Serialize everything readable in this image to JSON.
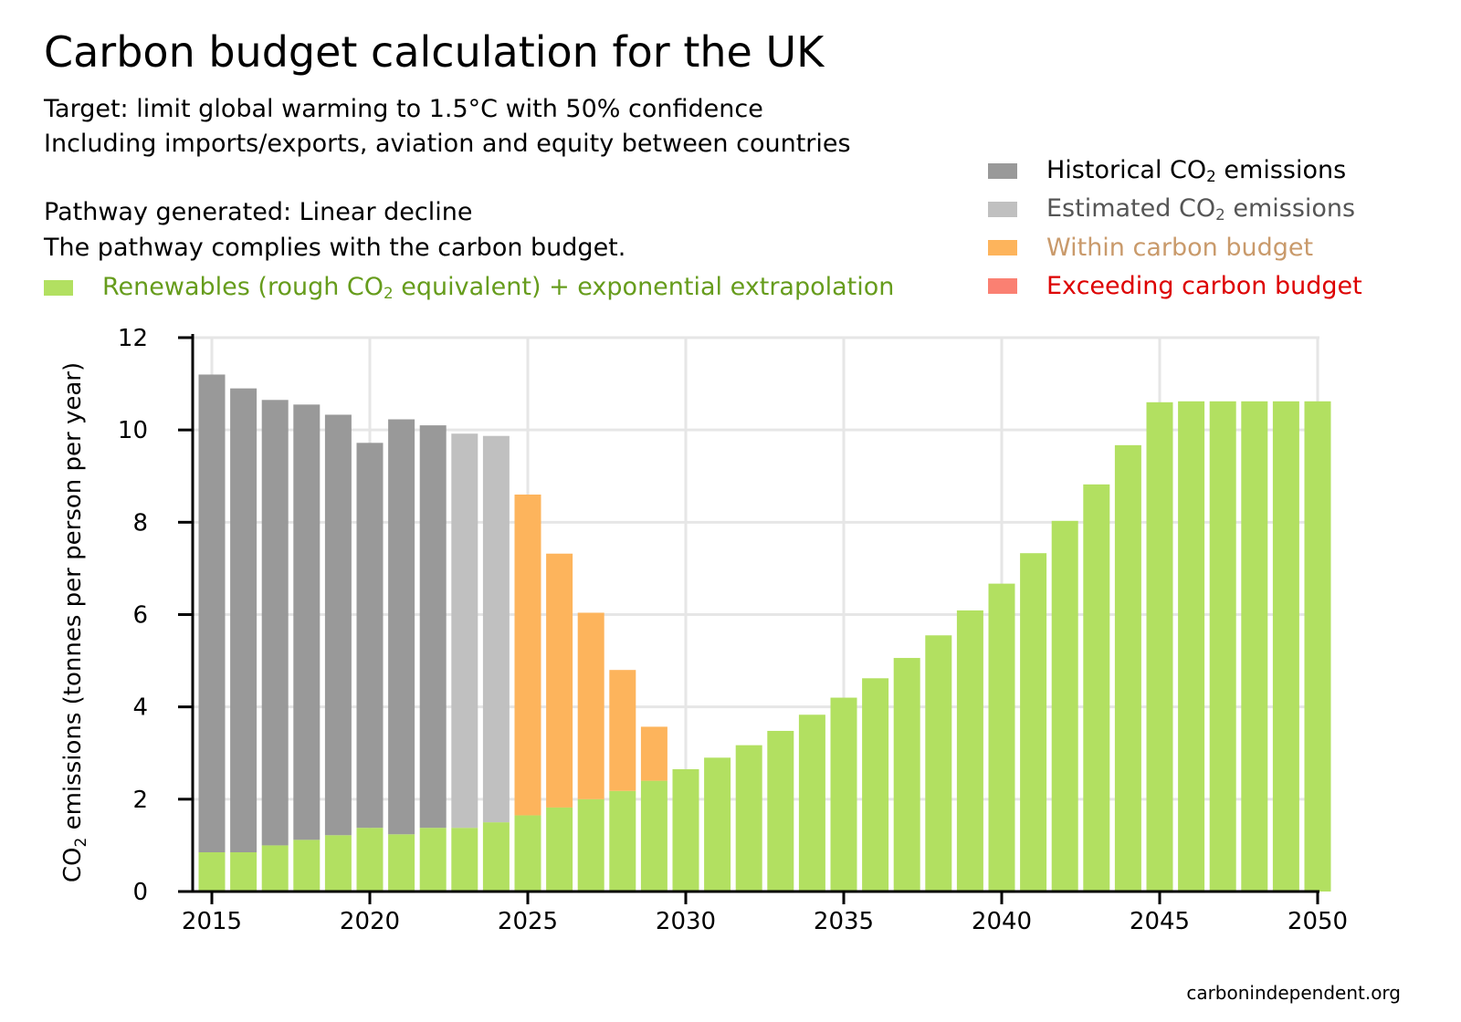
{
  "title": "Carbon budget calculation for the UK",
  "subtitle_lines": [
    "Target: limit global warming to 1.5°C with 50% confidence",
    "Including imports/exports, aviation and equity between countries"
  ],
  "pathway_lines": [
    "Pathway generated: Linear decline",
    "The pathway complies with the carbon budget."
  ],
  "legend": {
    "renewables": {
      "label_pre": "Renewables (rough CO",
      "label_sub": "2",
      "label_post": " equivalent) + exponential extrapolation",
      "color": "#b2e061",
      "text_color": "#669c1c"
    },
    "historical": {
      "label_pre": "Historical CO",
      "label_sub": "2",
      "label_post": " emissions",
      "color": "#999999",
      "text_color": "#000000"
    },
    "estimated": {
      "label_pre": "Estimated CO",
      "label_sub": "2",
      "label_post": " emissions",
      "color": "#c0c0c0",
      "text_color": "#555555"
    },
    "within": {
      "label": "Within carbon budget",
      "color": "#fdb45c",
      "text_color": "#c99a6b"
    },
    "exceeding": {
      "label": "Exceeding carbon budget",
      "color": "#fa8072",
      "text_color": "#dd0000"
    }
  },
  "footer": "carbonindependent.org",
  "chart_data": {
    "type": "bar",
    "stacked": true,
    "ylabel_pre": "CO",
    "ylabel_sub": "2",
    "ylabel_post": " emissions (tonnes per person per year)",
    "ylim": [
      0,
      12
    ],
    "yticks": [
      0,
      2,
      4,
      6,
      8,
      10,
      12
    ],
    "xticks": [
      2015,
      2020,
      2025,
      2030,
      2035,
      2040,
      2045,
      2050
    ],
    "grid": true,
    "years": [
      2015,
      2016,
      2017,
      2018,
      2019,
      2020,
      2021,
      2022,
      2023,
      2024,
      2025,
      2026,
      2027,
      2028,
      2029,
      2030,
      2031,
      2032,
      2033,
      2034,
      2035,
      2036,
      2037,
      2038,
      2039,
      2040,
      2041,
      2042,
      2043,
      2044,
      2045,
      2046,
      2047,
      2048,
      2049,
      2050
    ],
    "totals": [
      11.2,
      10.9,
      10.65,
      10.55,
      10.33,
      9.72,
      10.23,
      10.1,
      9.92,
      9.87,
      8.6,
      7.32,
      6.04,
      4.8,
      3.57,
      2.65,
      2.9,
      3.17,
      3.48,
      3.83,
      4.2,
      4.62,
      5.06,
      5.55,
      6.09,
      6.67,
      7.33,
      8.03,
      8.82,
      9.67,
      10.6,
      10.62,
      10.62,
      10.62,
      10.62,
      10.62
    ],
    "series": [
      {
        "name": "Renewables",
        "values": [
          0.85,
          0.85,
          1.0,
          1.12,
          1.22,
          1.38,
          1.24,
          1.38,
          1.38,
          1.5,
          1.65,
          1.82,
          2.0,
          2.18,
          2.4,
          2.65,
          2.9,
          3.17,
          3.48,
          3.83,
          4.2,
          4.62,
          5.06,
          5.55,
          6.09,
          6.67,
          7.33,
          8.03,
          8.82,
          9.67,
          10.6,
          10.62,
          10.62,
          10.62,
          10.62,
          10.62
        ]
      },
      {
        "name": "Historical",
        "values": [
          10.35,
          10.05,
          9.65,
          9.43,
          9.11,
          8.34,
          8.99,
          8.72,
          0,
          0,
          0,
          0,
          0,
          0,
          0,
          0,
          0,
          0,
          0,
          0,
          0,
          0,
          0,
          0,
          0,
          0,
          0,
          0,
          0,
          0,
          0,
          0,
          0,
          0,
          0,
          0
        ]
      },
      {
        "name": "Estimated",
        "values": [
          0,
          0,
          0,
          0,
          0,
          0,
          0,
          0,
          8.54,
          8.37,
          0,
          0,
          0,
          0,
          0,
          0,
          0,
          0,
          0,
          0,
          0,
          0,
          0,
          0,
          0,
          0,
          0,
          0,
          0,
          0,
          0,
          0,
          0,
          0,
          0,
          0
        ]
      },
      {
        "name": "Within carbon budget",
        "values": [
          0,
          0,
          0,
          0,
          0,
          0,
          0,
          0,
          0,
          0,
          6.95,
          5.5,
          4.04,
          2.62,
          1.17,
          0,
          0,
          0,
          0,
          0,
          0,
          0,
          0,
          0,
          0,
          0,
          0,
          0,
          0,
          0,
          0,
          0,
          0,
          0,
          0,
          0
        ]
      }
    ]
  }
}
